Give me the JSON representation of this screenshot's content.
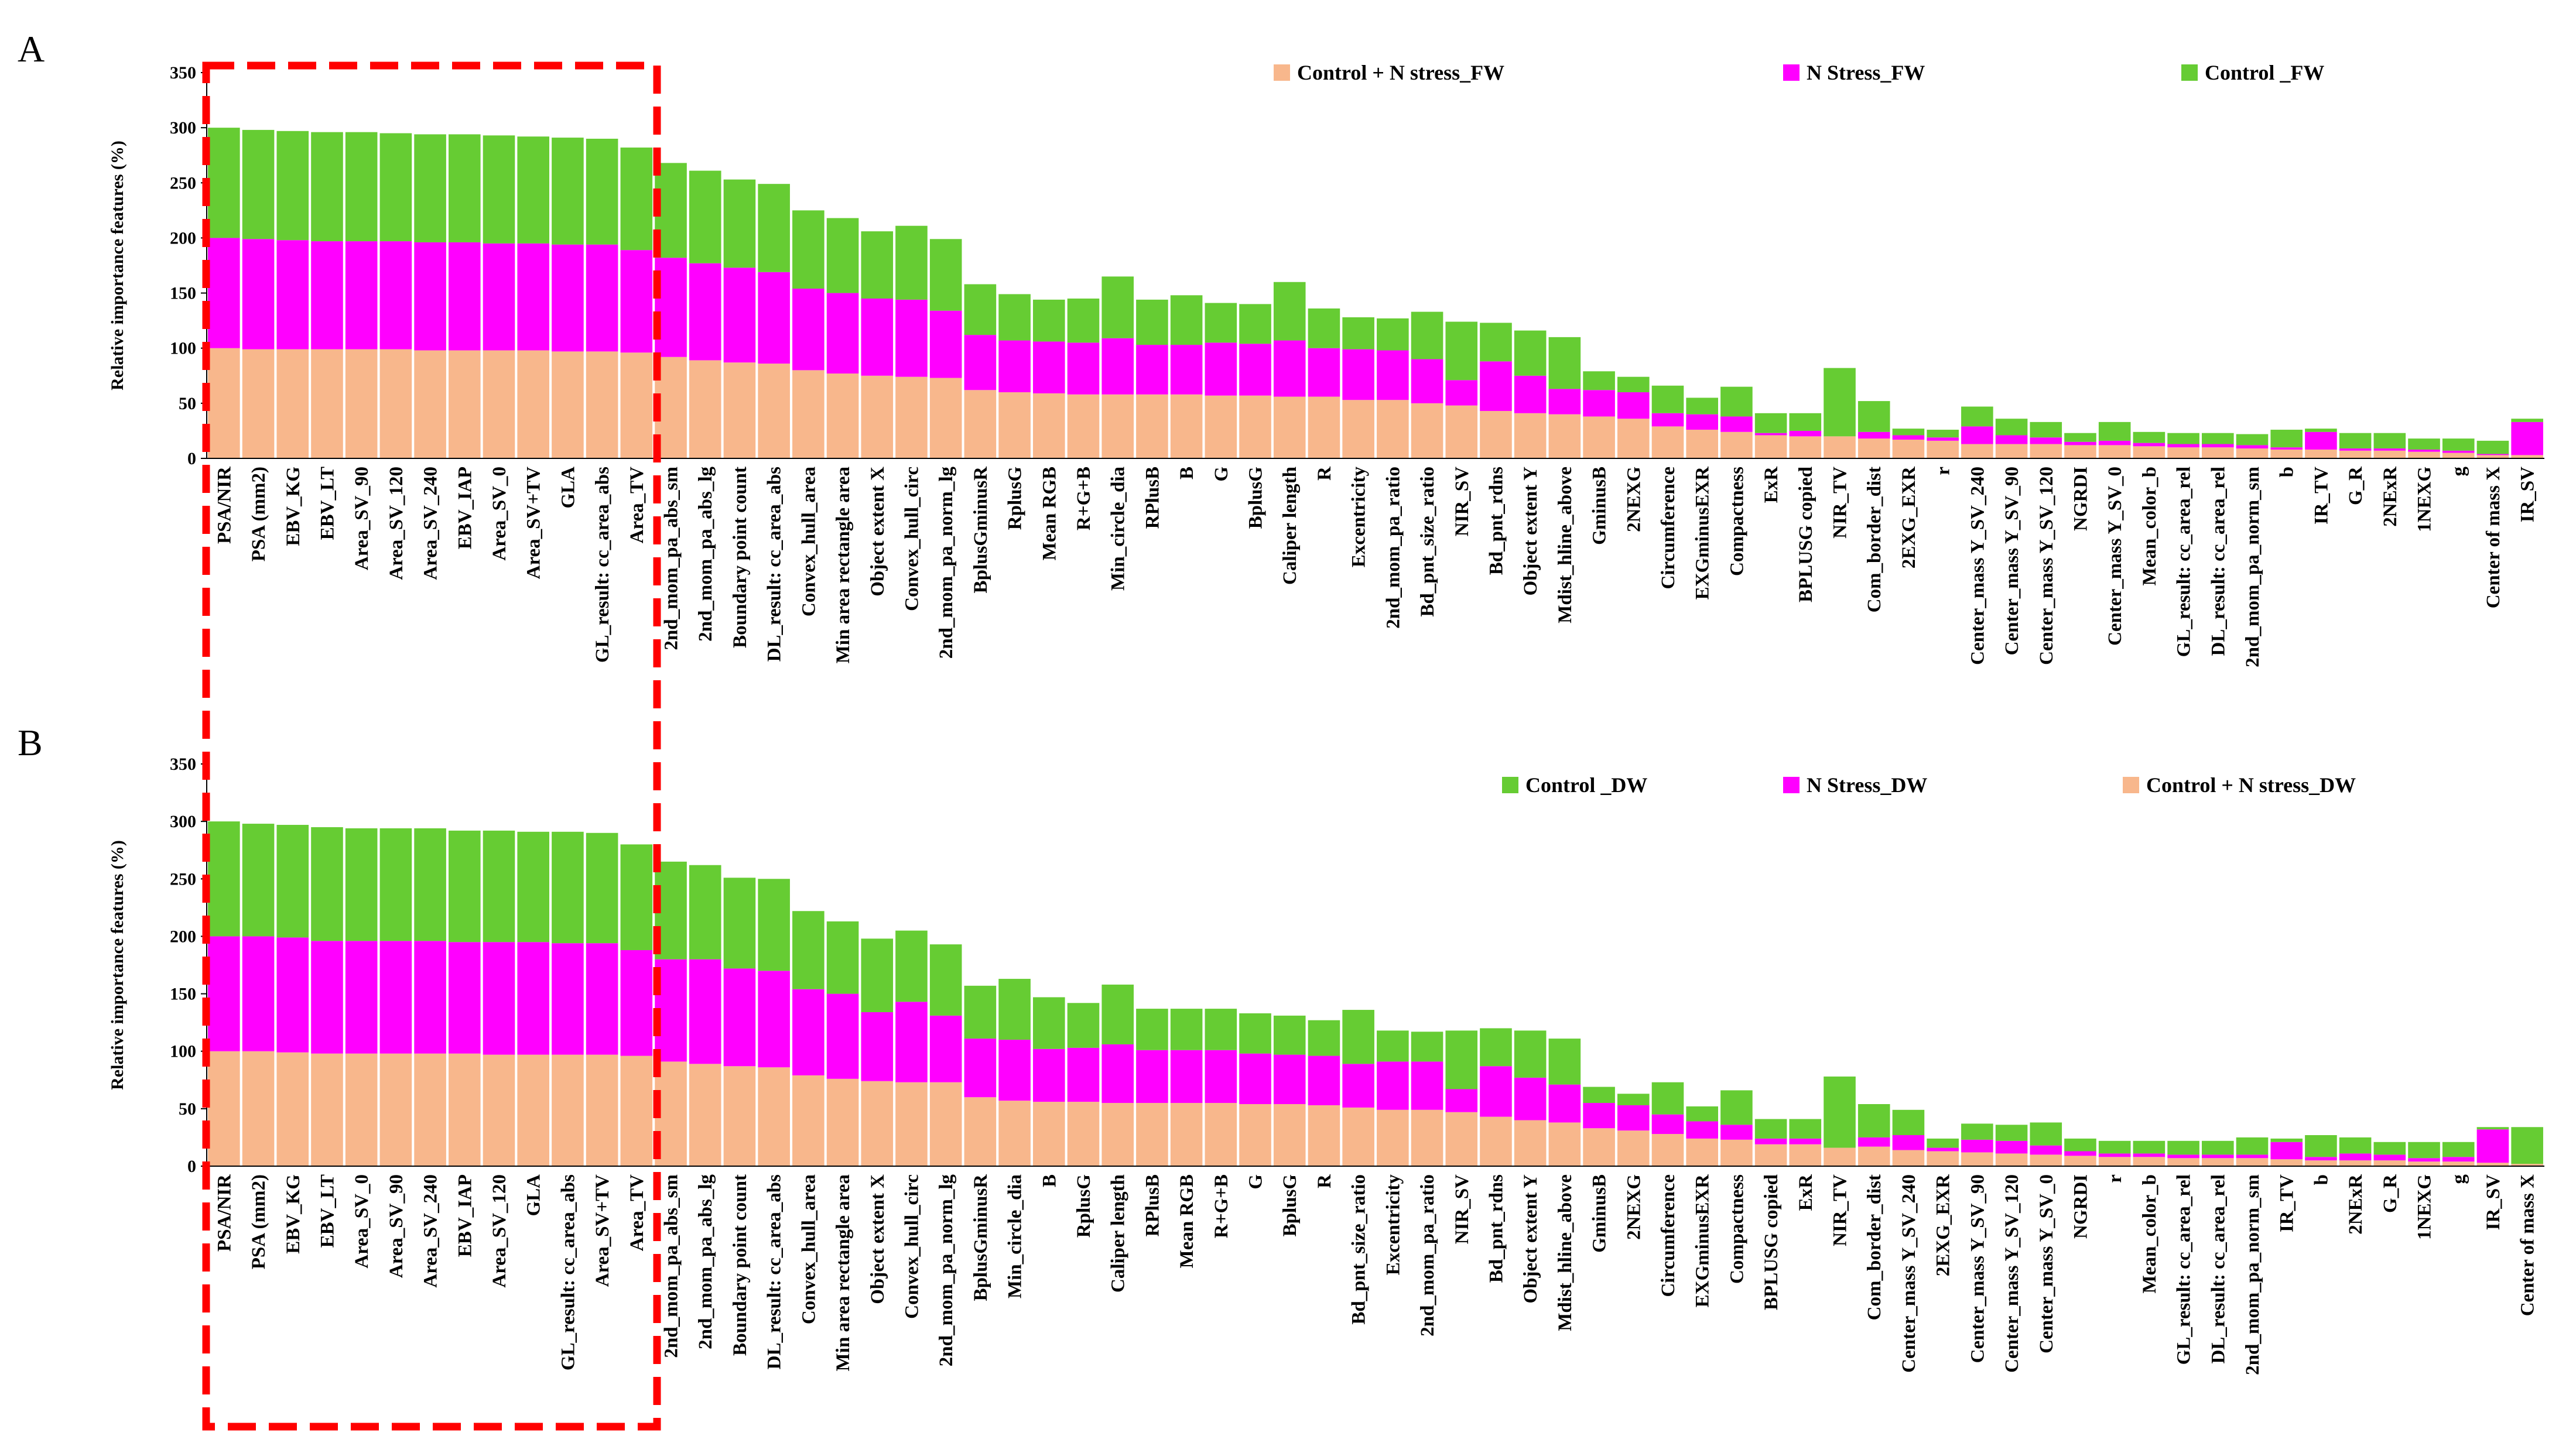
{
  "colors": {
    "control_n_stress": "#F8B78C",
    "n_stress": "#FF00FF",
    "control": "#66CC33",
    "highlight": "#FF0000"
  },
  "chart_data": [
    {
      "type": "bar",
      "stacked": true,
      "panel": "A",
      "ylabel": "Relative importance features (%)",
      "ylim": [
        0,
        350
      ],
      "yticks": [
        0,
        50,
        100,
        150,
        200,
        250,
        300,
        350
      ],
      "legend": [
        {
          "name": "Control + N stress_FW",
          "color_key": "control_n_stress"
        },
        {
          "name": "N Stress_FW",
          "color_key": "n_stress"
        },
        {
          "name": "Control _FW",
          "color_key": "control"
        }
      ],
      "categories": [
        "PSA/NIR",
        "PSA (mm2)",
        "EBV_KG",
        "EBV_LT",
        "Area_SV_90",
        "Area_SV_120",
        "Area_SV_240",
        "EBV_IAP",
        "Area_SV_0",
        "Area_SV+TV",
        "GLA",
        "GL_result: cc_area_abs",
        "Area_TV",
        "2nd_mom_pa_abs_sm",
        "2nd_mom_pa_abs_lg",
        "Boundary point count",
        "DL_result: cc_area_abs",
        "Convex_hull_area",
        "Min area rectangle area",
        "Object extent X",
        "Convex_hull_circ",
        "2nd_mom_pa_norm_lg",
        "BplusGminusR",
        "RplusG",
        "Mean RGB",
        "R+G+B",
        "Min_circle_dia",
        "RPlusB",
        "B",
        "G",
        "BplusG",
        "Caliper length",
        "R",
        "Excentricity",
        "2nd_mom_pa_ratio",
        "Bd_pnt_size_ratio",
        "NIR_SV",
        "Bd_pnt_rdns",
        "Object extent Y",
        "Mdist_hline_above",
        "GminusB",
        "2NEXG",
        "Circumference",
        "EXGminusEXR",
        "Compactness",
        "ExR",
        "BPLUSG copied",
        "NIR_TV",
        "Com_border_dist",
        "2EXG_EXR",
        "r",
        "Center_mass Y_SV_240",
        "Center_mass Y_SV_90",
        "Center_mass Y_SV_120",
        "NGRDI",
        "Center_mass Y_SV_0",
        "Mean_color_b",
        "GL_result: cc_area_rel",
        "DL_result: cc_area_rel",
        "2nd_mom_pa_norm_sm",
        "b",
        "IR_TV",
        "G_R",
        "2NExR",
        "1NEXG",
        "g",
        "Center of mass X",
        "IR_SV"
      ],
      "series": [
        {
          "name": "Control + N stress_FW",
          "color_key": "control_n_stress",
          "values": [
            100,
            99,
            99,
            99,
            99,
            99,
            98,
            98,
            98,
            98,
            97,
            97,
            96,
            92,
            89,
            87,
            86,
            80,
            77,
            75,
            74,
            73,
            62,
            60,
            59,
            58,
            58,
            58,
            58,
            57,
            57,
            56,
            56,
            53,
            53,
            50,
            48,
            43,
            41,
            40,
            38,
            36,
            29,
            26,
            24,
            21,
            20,
            20,
            18,
            17,
            16,
            13,
            13,
            13,
            12,
            12,
            11,
            10,
            10,
            9,
            8,
            8,
            7,
            7,
            6,
            5,
            3,
            3
          ]
        },
        {
          "name": "N Stress_FW",
          "color_key": "n_stress",
          "values": [
            100,
            100,
            99,
            98,
            98,
            98,
            98,
            98,
            97,
            97,
            97,
            97,
            93,
            90,
            88,
            86,
            83,
            74,
            73,
            70,
            70,
            61,
            50,
            47,
            47,
            47,
            51,
            45,
            45,
            48,
            47,
            51,
            44,
            46,
            45,
            40,
            23,
            45,
            34,
            23,
            24,
            24,
            12,
            14,
            14,
            2,
            5,
            0,
            6,
            4,
            3,
            16,
            8,
            6,
            3,
            4,
            3,
            3,
            3,
            3,
            2,
            16,
            2,
            2,
            2,
            2,
            1,
            30
          ]
        },
        {
          "name": "Control _FW",
          "color_key": "control",
          "values": [
            100,
            99,
            99,
            99,
            99,
            98,
            98,
            98,
            98,
            97,
            97,
            96,
            93,
            86,
            84,
            80,
            80,
            71,
            68,
            61,
            67,
            65,
            46,
            42,
            38,
            40,
            56,
            41,
            45,
            36,
            36,
            53,
            36,
            29,
            29,
            43,
            53,
            35,
            41,
            47,
            17,
            14,
            25,
            15,
            27,
            18,
            16,
            62,
            28,
            6,
            7,
            18,
            15,
            14,
            8,
            17,
            10,
            10,
            10,
            10,
            16,
            3,
            14,
            14,
            10,
            11,
            12,
            3
          ]
        }
      ]
    },
    {
      "type": "bar",
      "stacked": true,
      "panel": "B",
      "ylabel": "Relative importance features (%)",
      "ylim": [
        0,
        350
      ],
      "yticks": [
        0,
        50,
        100,
        150,
        200,
        250,
        300,
        350
      ],
      "legend": [
        {
          "name": "Control _DW",
          "color_key": "control"
        },
        {
          "name": "N Stress_DW",
          "color_key": "n_stress"
        },
        {
          "name": "Control + N stress_DW",
          "color_key": "control_n_stress"
        }
      ],
      "categories": [
        "PSA/NIR",
        "PSA (mm2)",
        "EBV_KG",
        "EBV_LT",
        "Area_SV_0",
        "Area_SV_90",
        "Area_SV_240",
        "EBV_IAP",
        "Area_SV_120",
        "GLA",
        "GL_result: cc_area_abs",
        "Area_SV+TV",
        "Area_TV",
        "2nd_mom_pa_abs_sm",
        "2nd_mom_pa_abs_lg",
        "Boundary point count",
        "DL_result: cc_area_abs",
        "Convex_hull_area",
        "Min area rectangle area",
        "Object extent X",
        "Convex_hull_circ",
        "2nd_mom_pa_norm_lg",
        "BplusGminusR",
        "Min_circle_dia",
        "B",
        "RplusG",
        "Caliper length",
        "RPlusB",
        "Mean RGB",
        "R+G+B",
        "G",
        "BplusG",
        "R",
        "Bd_pnt_size_ratio",
        "Excentricity",
        "2nd_mom_pa_ratio",
        "NIR_SV",
        "Bd_pnt_rdns",
        "Object extent Y",
        "Mdist_hline_above",
        "GminusB",
        "2NEXG",
        "Circumference",
        "EXGminusEXR",
        "Compactness",
        "BPLUSG copied",
        "ExR",
        "NIR_TV",
        "Com_border_dist",
        "Center_mass Y_SV_240",
        "2EXG_EXR",
        "Center_mass Y_SV_90",
        "Center_mass Y_SV_120",
        "Center_mass Y_SV_0",
        "NGRDI",
        "r",
        "Mean_color_b",
        "GL_result: cc_area_rel",
        "DL_result: cc_area_rel",
        "2nd_mom_pa_norm_sm",
        "IR_TV",
        "b",
        "2NExR",
        "G_R",
        "1NEXG",
        "g",
        "IR_SV",
        "Center of mass X"
      ],
      "series": [
        {
          "name": "Control + N stress_DW",
          "color_key": "control_n_stress",
          "values": [
            100,
            100,
            99,
            98,
            98,
            98,
            98,
            98,
            97,
            97,
            97,
            97,
            96,
            91,
            89,
            87,
            86,
            79,
            76,
            74,
            73,
            73,
            60,
            57,
            56,
            56,
            55,
            55,
            55,
            55,
            54,
            54,
            53,
            51,
            49,
            49,
            47,
            43,
            40,
            38,
            33,
            31,
            28,
            24,
            23,
            19,
            19,
            16,
            17,
            14,
            13,
            12,
            11,
            10,
            9,
            8,
            8,
            7,
            7,
            7,
            6,
            5,
            5,
            5,
            4,
            4,
            3,
            2
          ]
        },
        {
          "name": "N Stress_DW",
          "color_key": "n_stress",
          "values": [
            100,
            100,
            100,
            98,
            98,
            98,
            98,
            97,
            98,
            98,
            97,
            97,
            92,
            89,
            91,
            85,
            84,
            75,
            74,
            60,
            70,
            58,
            51,
            53,
            46,
            47,
            51,
            46,
            46,
            46,
            44,
            43,
            43,
            38,
            42,
            42,
            20,
            44,
            37,
            33,
            22,
            22,
            17,
            15,
            13,
            5,
            5,
            0,
            8,
            13,
            3,
            11,
            11,
            8,
            4,
            3,
            3,
            3,
            3,
            3,
            15,
            3,
            6,
            5,
            3,
            4,
            29,
            0
          ]
        },
        {
          "name": "Control _DW",
          "color_key": "control",
          "values": [
            100,
            98,
            98,
            99,
            98,
            98,
            98,
            97,
            97,
            96,
            97,
            96,
            92,
            85,
            82,
            79,
            80,
            68,
            63,
            64,
            62,
            62,
            46,
            53,
            45,
            39,
            52,
            36,
            36,
            36,
            35,
            34,
            31,
            47,
            27,
            26,
            51,
            33,
            41,
            40,
            14,
            10,
            28,
            13,
            30,
            17,
            17,
            62,
            29,
            22,
            8,
            14,
            14,
            20,
            11,
            11,
            11,
            12,
            12,
            15,
            3,
            19,
            14,
            11,
            14,
            13,
            2,
            32
          ]
        }
      ]
    }
  ]
}
